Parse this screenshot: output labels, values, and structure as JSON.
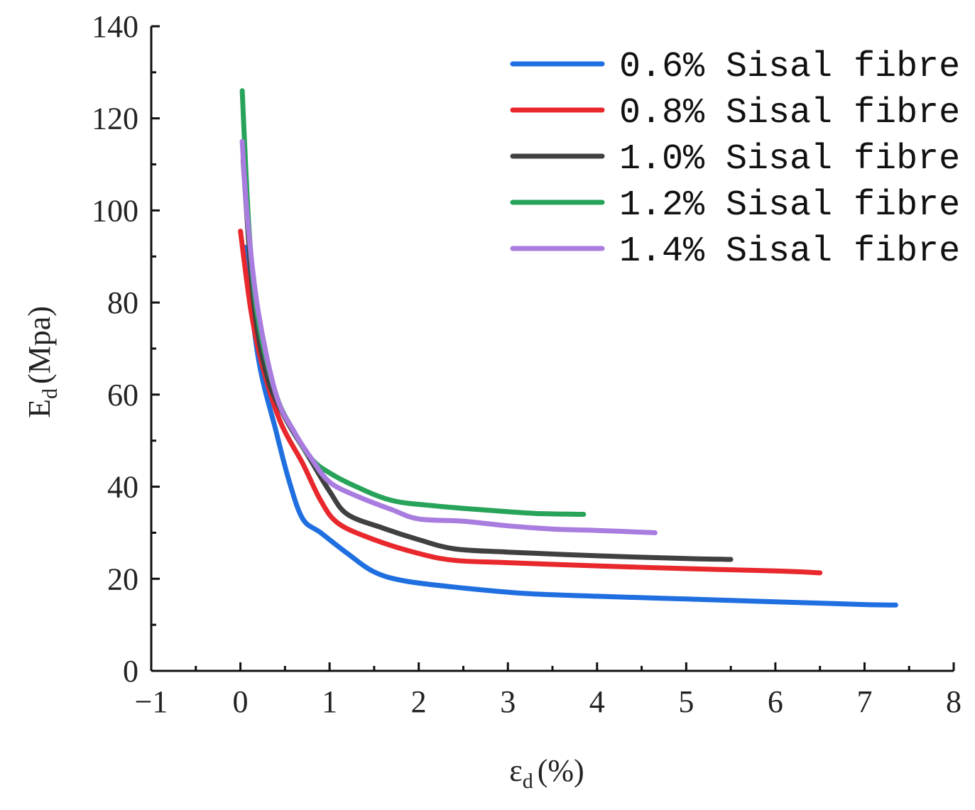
{
  "chart_data": {
    "type": "line",
    "title": "",
    "xlabel": {
      "symbol": "ε",
      "subscript": "d",
      "unit": "(%)"
    },
    "ylabel": {
      "symbol": "E",
      "subscript": "d",
      "unit": "(Mpa)"
    },
    "xlim": [
      -1,
      8
    ],
    "ylim": [
      0,
      140
    ],
    "x_ticks": [
      -1,
      0,
      1,
      2,
      3,
      4,
      5,
      6,
      7,
      8
    ],
    "x_tick_labels": [
      "−1",
      "0",
      "1",
      "2",
      "3",
      "4",
      "5",
      "6",
      "7",
      "8"
    ],
    "y_ticks": [
      0,
      20,
      40,
      60,
      80,
      100,
      120,
      140
    ],
    "y_tick_labels": [
      "0",
      "20",
      "40",
      "60",
      "80",
      "100",
      "120",
      "140"
    ],
    "grid": false,
    "legend_position": "top-right",
    "series": [
      {
        "name": "0.6% Sisal fibre",
        "color": "#1f6fe0",
        "points": [
          [
            0.05,
            92
          ],
          [
            0.2,
            68
          ],
          [
            0.4,
            52
          ],
          [
            0.55,
            41
          ],
          [
            0.7,
            33
          ],
          [
            0.9,
            30
          ],
          [
            1.2,
            25.5
          ],
          [
            1.5,
            21.5
          ],
          [
            1.85,
            19.5
          ],
          [
            2.5,
            18
          ],
          [
            3.2,
            16.8
          ],
          [
            4.0,
            16.2
          ],
          [
            5.0,
            15.6
          ],
          [
            6.0,
            15.0
          ],
          [
            7.0,
            14.4
          ],
          [
            7.35,
            14.3
          ]
        ]
      },
      {
        "name": "0.8% Sisal fibre",
        "color": "#e8282c",
        "points": [
          [
            0.0,
            95.5
          ],
          [
            0.12,
            78
          ],
          [
            0.25,
            66
          ],
          [
            0.45,
            54
          ],
          [
            0.7,
            45
          ],
          [
            0.9,
            37
          ],
          [
            1.1,
            32
          ],
          [
            1.5,
            28.5
          ],
          [
            2.0,
            25.5
          ],
          [
            2.4,
            24
          ],
          [
            3.0,
            23.5
          ],
          [
            4.0,
            22.8
          ],
          [
            5.0,
            22.2
          ],
          [
            6.0,
            21.7
          ],
          [
            6.5,
            21.3
          ]
        ]
      },
      {
        "name": "1.0% Sisal fibre",
        "color": "#404040",
        "points": [
          [
            0.03,
            111
          ],
          [
            0.15,
            80
          ],
          [
            0.3,
            64
          ],
          [
            0.5,
            55
          ],
          [
            0.75,
            47
          ],
          [
            1.0,
            39
          ],
          [
            1.2,
            34
          ],
          [
            1.6,
            31
          ],
          [
            2.0,
            28.5
          ],
          [
            2.4,
            26.5
          ],
          [
            3.0,
            25.8
          ],
          [
            4.0,
            25
          ],
          [
            5.0,
            24.4
          ],
          [
            5.5,
            24.2
          ]
        ]
      },
      {
        "name": "1.2% Sisal fibre",
        "color": "#27a35a",
        "points": [
          [
            0.02,
            126
          ],
          [
            0.1,
            95
          ],
          [
            0.2,
            76
          ],
          [
            0.4,
            60
          ],
          [
            0.6,
            52
          ],
          [
            0.8,
            46
          ],
          [
            1.0,
            43
          ],
          [
            1.3,
            40
          ],
          [
            1.7,
            37
          ],
          [
            2.2,
            35.8
          ],
          [
            2.7,
            35
          ],
          [
            3.3,
            34.2
          ],
          [
            3.85,
            34
          ]
        ]
      },
      {
        "name": "1.4% Sisal fibre",
        "color": "#a97cdf",
        "points": [
          [
            0.02,
            115
          ],
          [
            0.08,
            98
          ],
          [
            0.2,
            78
          ],
          [
            0.4,
            60
          ],
          [
            0.6,
            52
          ],
          [
            0.8,
            46
          ],
          [
            1.0,
            41
          ],
          [
            1.3,
            38
          ],
          [
            1.7,
            35
          ],
          [
            2.0,
            33
          ],
          [
            2.5,
            32.5
          ],
          [
            3.0,
            31.5
          ],
          [
            3.5,
            30.8
          ],
          [
            4.0,
            30.5
          ],
          [
            4.65,
            30
          ]
        ]
      }
    ]
  }
}
